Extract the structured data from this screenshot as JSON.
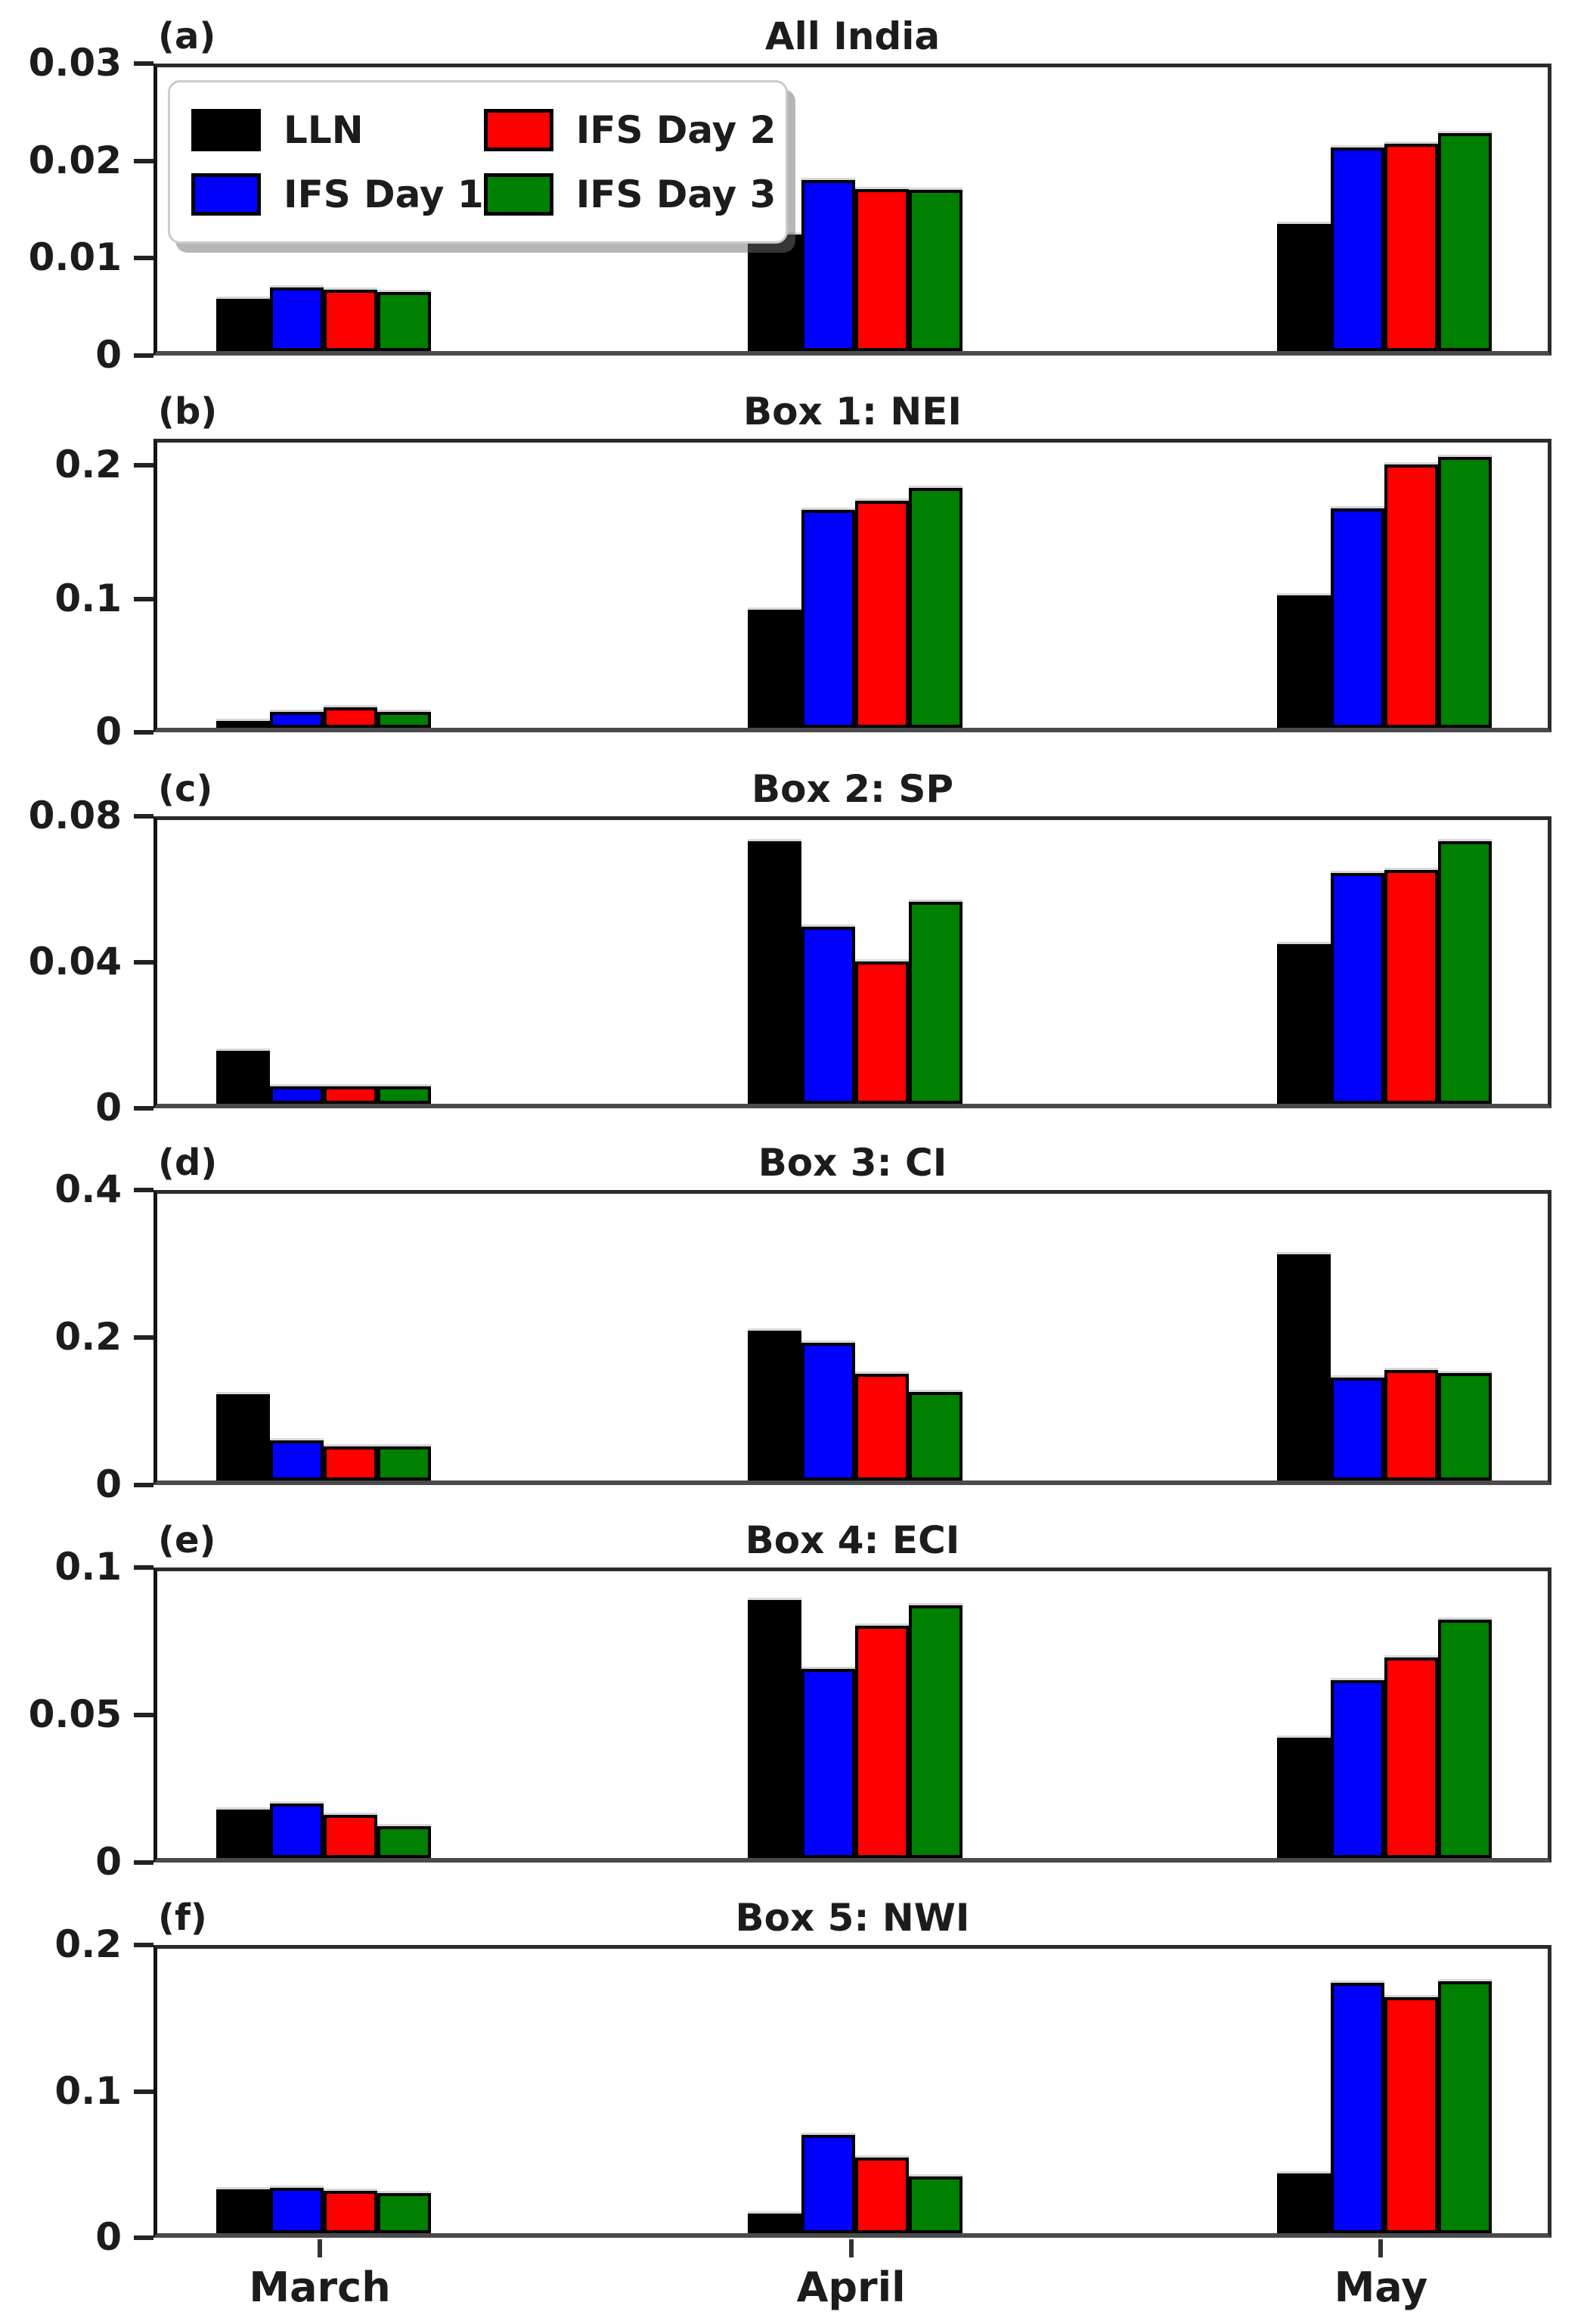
{
  "figure": {
    "x_categories": [
      "March",
      "April",
      "May"
    ],
    "legend": {
      "entries": [
        {
          "label": "LLN",
          "color": "#000000"
        },
        {
          "label": "IFS Day 1",
          "color": "#0000ff"
        },
        {
          "label": "IFS Day 2",
          "color": "#ff0000"
        },
        {
          "label": "IFS Day 3",
          "color": "#008000"
        }
      ],
      "position": "upper left of panel (a)"
    },
    "accent_colors": {
      "black": "#000000",
      "blue": "#0000ff",
      "red": "#ff0000",
      "green": "#008000"
    }
  },
  "chart_data": [
    {
      "type": "bar",
      "panel_label": "(a)",
      "title": "All India",
      "categories": [
        "March",
        "April",
        "May"
      ],
      "ylim": [
        0,
        0.03
      ],
      "grid": false,
      "yticks": [
        {
          "value": 0,
          "label": "0"
        },
        {
          "value": 0.01,
          "label": "0.01"
        },
        {
          "value": 0.02,
          "label": "0.02"
        },
        {
          "value": 0.03,
          "label": "0.03"
        }
      ],
      "series": [
        {
          "name": "LLN",
          "color": "#000000",
          "values": [
            0.0055,
            0.0123,
            0.0134
          ]
        },
        {
          "name": "IFS Day 1",
          "color": "#0000ff",
          "values": [
            0.0067,
            0.0181,
            0.0215
          ]
        },
        {
          "name": "IFS Day 2",
          "color": "#ff0000",
          "values": [
            0.0065,
            0.0171,
            0.0219
          ]
        },
        {
          "name": "IFS Day 3",
          "color": "#008000",
          "values": [
            0.0062,
            0.017,
            0.023
          ]
        }
      ]
    },
    {
      "type": "bar",
      "panel_label": "(b)",
      "title": "Box 1: NEI",
      "categories": [
        "March",
        "April",
        "May"
      ],
      "ylim": [
        0,
        0.22
      ],
      "grid": false,
      "yticks": [
        {
          "value": 0,
          "label": "0"
        },
        {
          "value": 0.1,
          "label": "0.1"
        },
        {
          "value": 0.2,
          "label": "0.2"
        }
      ],
      "series": [
        {
          "name": "LLN",
          "color": "#000000",
          "values": [
            0.005,
            0.091,
            0.102
          ]
        },
        {
          "name": "IFS Day 1",
          "color": "#0000ff",
          "values": [
            0.012,
            0.168,
            0.169
          ]
        },
        {
          "name": "IFS Day 2",
          "color": "#ff0000",
          "values": [
            0.016,
            0.175,
            0.203
          ]
        },
        {
          "name": "IFS Day 3",
          "color": "#008000",
          "values": [
            0.012,
            0.185,
            0.209
          ]
        }
      ]
    },
    {
      "type": "bar",
      "panel_label": "(c)",
      "title": "Box 2: SP",
      "categories": [
        "March",
        "April",
        "May"
      ],
      "ylim": [
        0,
        0.08
      ],
      "grid": false,
      "yticks": [
        {
          "value": 0,
          "label": "0"
        },
        {
          "value": 0.04,
          "label": "0.04"
        },
        {
          "value": 0.08,
          "label": "0.08"
        }
      ],
      "series": [
        {
          "name": "LLN",
          "color": "#000000",
          "values": [
            0.015,
            0.074,
            0.045
          ]
        },
        {
          "name": "IFS Day 1",
          "color": "#0000ff",
          "values": [
            0.005,
            0.05,
            0.065
          ]
        },
        {
          "name": "IFS Day 2",
          "color": "#ff0000",
          "values": [
            0.005,
            0.04,
            0.066
          ]
        },
        {
          "name": "IFS Day 3",
          "color": "#008000",
          "values": [
            0.005,
            0.057,
            0.074
          ]
        }
      ]
    },
    {
      "type": "bar",
      "panel_label": "(d)",
      "title": "Box 3: CI",
      "categories": [
        "March",
        "April",
        "May"
      ],
      "ylim": [
        0,
        0.4
      ],
      "grid": false,
      "yticks": [
        {
          "value": 0,
          "label": "0"
        },
        {
          "value": 0.2,
          "label": "0.2"
        },
        {
          "value": 0.4,
          "label": "0.4"
        }
      ],
      "series": [
        {
          "name": "LLN",
          "color": "#000000",
          "values": [
            0.12,
            0.209,
            0.316
          ]
        },
        {
          "name": "IFS Day 1",
          "color": "#0000ff",
          "values": [
            0.056,
            0.192,
            0.144
          ]
        },
        {
          "name": "IFS Day 2",
          "color": "#ff0000",
          "values": [
            0.048,
            0.149,
            0.154
          ]
        },
        {
          "name": "IFS Day 3",
          "color": "#008000",
          "values": [
            0.048,
            0.124,
            0.15
          ]
        }
      ]
    },
    {
      "type": "bar",
      "panel_label": "(e)",
      "title": "Box 4: ECI",
      "categories": [
        "March",
        "April",
        "May"
      ],
      "ylim": [
        0,
        0.1
      ],
      "grid": false,
      "yticks": [
        {
          "value": 0,
          "label": "0"
        },
        {
          "value": 0.05,
          "label": "0.05"
        },
        {
          "value": 0.1,
          "label": "0.1"
        }
      ],
      "series": [
        {
          "name": "LLN",
          "color": "#000000",
          "values": [
            0.017,
            0.09,
            0.042
          ]
        },
        {
          "name": "IFS Day 1",
          "color": "#0000ff",
          "values": [
            0.019,
            0.066,
            0.062
          ]
        },
        {
          "name": "IFS Day 2",
          "color": "#ff0000",
          "values": [
            0.015,
            0.081,
            0.07
          ]
        },
        {
          "name": "IFS Day 3",
          "color": "#008000",
          "values": [
            0.011,
            0.088,
            0.083
          ]
        }
      ]
    },
    {
      "type": "bar",
      "panel_label": "(f)",
      "title": "Box 5: NWI",
      "categories": [
        "March",
        "April",
        "May"
      ],
      "ylim": [
        0,
        0.2
      ],
      "grid": false,
      "yticks": [
        {
          "value": 0,
          "label": "0"
        },
        {
          "value": 0.1,
          "label": "0.1"
        },
        {
          "value": 0.2,
          "label": "0.2"
        }
      ],
      "series": [
        {
          "name": "LLN",
          "color": "#000000",
          "values": [
            0.031,
            0.014,
            0.042
          ]
        },
        {
          "name": "IFS Day 1",
          "color": "#0000ff",
          "values": [
            0.032,
            0.069,
            0.176
          ]
        },
        {
          "name": "IFS Day 2",
          "color": "#ff0000",
          "values": [
            0.03,
            0.053,
            0.166
          ]
        },
        {
          "name": "IFS Day 3",
          "color": "#008000",
          "values": [
            0.028,
            0.04,
            0.177
          ]
        }
      ]
    }
  ]
}
